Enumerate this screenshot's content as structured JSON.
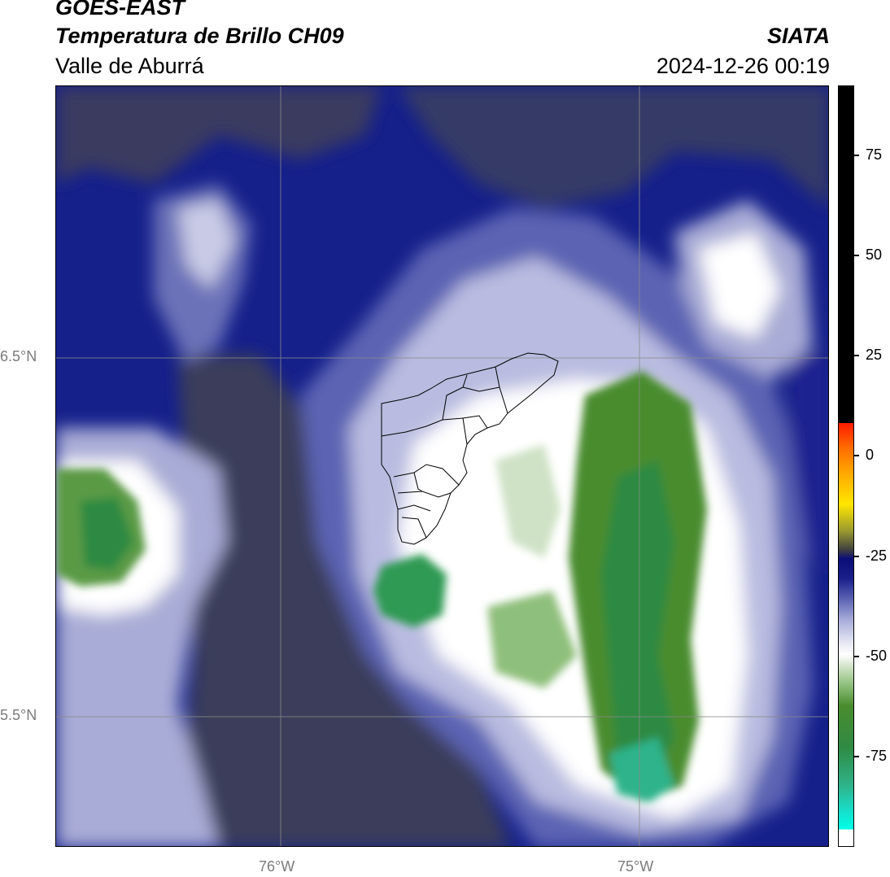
{
  "header": {
    "satellite": "GOES-EAST",
    "product": "Temperatura de Brillo CH09",
    "region": "Valle de Aburrá",
    "agency": "SIATA",
    "datetime": "2024-12-26 00:19"
  },
  "axes": {
    "lat_labels": [
      "6.5°N",
      "5.5°N"
    ],
    "lon_labels": [
      "76°W",
      "75°W"
    ]
  },
  "colorbar": {
    "ticks": [
      "75",
      "50",
      "25",
      "0",
      "-25",
      "-50",
      "-75"
    ]
  },
  "colors": {
    "cloud_cold": "#2f8a43",
    "cloud_cool": "#ffffff",
    "background_clear": "#3a3d5a",
    "ocean_dark": "#0b0d78"
  }
}
